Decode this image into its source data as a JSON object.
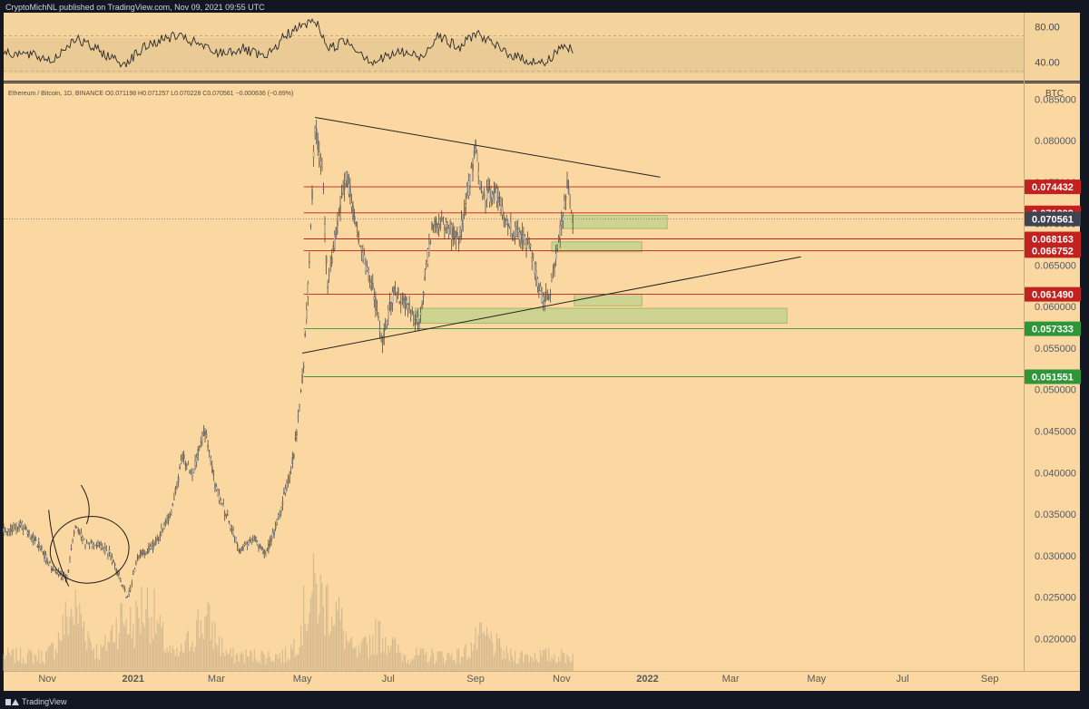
{
  "header": {
    "publisher": "CryptoMichNL published on TradingView.com, Nov 09, 2021 09:55 UTC"
  },
  "footer": {
    "brand": "TradingView"
  },
  "colors": {
    "candle_body": "#8a8a8a",
    "wick": "#3a3a3a",
    "level_red": "#c1221f",
    "level_green": "#2e9638",
    "last_price": "#3f4450",
    "zone_fill": "#c6d48f",
    "trendline": "#222222"
  },
  "chart_data": {
    "type": "candlestick",
    "title": "Ethereum / Bitcoin, 1D, BINANCE",
    "legend": "Ethereum / Bitcoin, 1D, BINANCE  O0.071198 H0.071257 L0.070228 C0.070561 −0.000636 (−0.89%)",
    "price_unit": "BTC",
    "ohlc": {
      "open": 0.071198,
      "high": 0.071257,
      "low": 0.070228,
      "close": 0.070561,
      "change": -0.000636,
      "change_pct": -0.89
    },
    "x_axis": {
      "range": [
        "2020-10-01",
        "2022-09-25"
      ],
      "labels": [
        {
          "label": "Nov",
          "date": "2020-11-01"
        },
        {
          "label": "2021",
          "date": "2021-01-01"
        },
        {
          "label": "Mar",
          "date": "2021-03-01"
        },
        {
          "label": "May",
          "date": "2021-05-01"
        },
        {
          "label": "Jul",
          "date": "2021-07-01"
        },
        {
          "label": "Sep",
          "date": "2021-09-01"
        },
        {
          "label": "Nov",
          "date": "2021-11-01"
        },
        {
          "label": "2022",
          "date": "2022-01-01"
        },
        {
          "label": "Mar",
          "date": "2022-03-01"
        },
        {
          "label": "May",
          "date": "2022-05-01"
        },
        {
          "label": "Jul",
          "date": "2022-07-01"
        },
        {
          "label": "Sep",
          "date": "2022-09-01"
        }
      ]
    },
    "y_axis": {
      "range": [
        0.0161,
        0.0869
      ],
      "ticks": [
        "0.085000",
        "0.080000",
        "0.075000",
        "0.070000",
        "0.065000",
        "0.060000",
        "0.055000",
        "0.050000",
        "0.045000",
        "0.040000",
        "0.035000",
        "0.030000",
        "0.025000",
        "0.020000"
      ]
    },
    "price_path": [
      [
        "2020-10-01",
        0.0332
      ],
      [
        "2020-10-14",
        0.0336
      ],
      [
        "2020-10-25",
        0.0315
      ],
      [
        "2020-11-05",
        0.0283
      ],
      [
        "2020-11-15",
        0.0272
      ],
      [
        "2020-11-21",
        0.0338
      ],
      [
        "2020-11-28",
        0.0315
      ],
      [
        "2020-12-08",
        0.0313
      ],
      [
        "2020-12-15",
        0.0303
      ],
      [
        "2020-12-22",
        0.0275
      ],
      [
        "2020-12-28",
        0.0248
      ],
      [
        "2021-01-05",
        0.0302
      ],
      [
        "2021-01-15",
        0.031
      ],
      [
        "2021-01-28",
        0.035
      ],
      [
        "2021-02-05",
        0.042
      ],
      [
        "2021-02-12",
        0.04
      ],
      [
        "2021-02-21",
        0.045
      ],
      [
        "2021-03-01",
        0.038
      ],
      [
        "2021-03-10",
        0.034
      ],
      [
        "2021-03-18",
        0.0305
      ],
      [
        "2021-03-28",
        0.0322
      ],
      [
        "2021-04-05",
        0.03
      ],
      [
        "2021-04-15",
        0.035
      ],
      [
        "2021-04-25",
        0.042
      ],
      [
        "2021-05-02",
        0.053
      ],
      [
        "2021-05-06",
        0.065
      ],
      [
        "2021-05-10",
        0.082
      ],
      [
        "2021-05-15",
        0.077
      ],
      [
        "2021-05-19",
        0.062
      ],
      [
        "2021-05-25",
        0.069
      ],
      [
        "2021-06-01",
        0.076
      ],
      [
        "2021-06-10",
        0.068
      ],
      [
        "2021-06-20",
        0.062
      ],
      [
        "2021-06-27",
        0.056
      ],
      [
        "2021-07-05",
        0.062
      ],
      [
        "2021-07-15",
        0.06
      ],
      [
        "2021-07-23",
        0.058
      ],
      [
        "2021-08-01",
        0.07
      ],
      [
        "2021-08-10",
        0.07
      ],
      [
        "2021-08-20",
        0.068
      ],
      [
        "2021-09-01",
        0.079
      ],
      [
        "2021-09-06",
        0.073
      ],
      [
        "2021-09-15",
        0.074
      ],
      [
        "2021-09-22",
        0.07
      ],
      [
        "2021-10-01",
        0.069
      ],
      [
        "2021-10-10",
        0.067
      ],
      [
        "2021-10-18",
        0.061
      ],
      [
        "2021-10-24",
        0.062
      ],
      [
        "2021-11-01",
        0.07
      ],
      [
        "2021-11-05",
        0.075
      ],
      [
        "2021-11-09",
        0.0706
      ]
    ],
    "rsi": {
      "scale_labels": [
        "80.00",
        "40.00"
      ],
      "band": [
        30,
        70
      ],
      "range": [
        20,
        90
      ],
      "values": [
        [
          "2020-10-01",
          52
        ],
        [
          "2020-10-20",
          48
        ],
        [
          "2020-11-05",
          42
        ],
        [
          "2020-11-20",
          67
        ],
        [
          "2020-12-05",
          55
        ],
        [
          "2020-12-25",
          38
        ],
        [
          "2021-01-12",
          60
        ],
        [
          "2021-01-30",
          70
        ],
        [
          "2021-02-14",
          62
        ],
        [
          "2021-03-01",
          50
        ],
        [
          "2021-03-20",
          55
        ],
        [
          "2021-04-05",
          44
        ],
        [
          "2021-04-20",
          72
        ],
        [
          "2021-05-10",
          88
        ],
        [
          "2021-05-20",
          55
        ],
        [
          "2021-06-01",
          65
        ],
        [
          "2021-06-20",
          40
        ],
        [
          "2021-07-10",
          52
        ],
        [
          "2021-07-25",
          45
        ],
        [
          "2021-08-05",
          72
        ],
        [
          "2021-08-20",
          55
        ],
        [
          "2021-09-01",
          74
        ],
        [
          "2021-09-15",
          58
        ],
        [
          "2021-10-01",
          45
        ],
        [
          "2021-10-20",
          38
        ],
        [
          "2021-11-02",
          60
        ],
        [
          "2021-11-09",
          52
        ]
      ]
    },
    "volume": {
      "peaks": [
        [
          "2020-11-20",
          0.7
        ],
        [
          "2020-12-25",
          0.6
        ],
        [
          "2021-01-10",
          0.78
        ],
        [
          "2021-02-20",
          0.55
        ],
        [
          "2021-05-10",
          1.0
        ],
        [
          "2021-05-20",
          0.85
        ],
        [
          "2021-06-25",
          0.35
        ],
        [
          "2021-09-07",
          0.3
        ]
      ]
    },
    "levels": [
      {
        "price": 0.074432,
        "label": "0.074432",
        "kind": "resistance"
      },
      {
        "price": 0.071299,
        "label": "0.071299",
        "kind": "resistance"
      },
      {
        "price": 0.070561,
        "label": "0.070561",
        "kind": "last"
      },
      {
        "price": 0.068163,
        "label": "0.068163",
        "kind": "resistance"
      },
      {
        "price": 0.066752,
        "label": "0.066752",
        "kind": "resistance"
      },
      {
        "price": 0.06149,
        "label": "0.061490",
        "kind": "resistance"
      },
      {
        "price": 0.057333,
        "label": "0.057333",
        "kind": "support"
      },
      {
        "price": 0.051551,
        "label": "0.051551",
        "kind": "support"
      }
    ],
    "zones": [
      {
        "start": "2021-11-01",
        "end": "2022-01-15",
        "low": 0.0694,
        "high": 0.071
      },
      {
        "start": "2021-10-25",
        "end": "2021-12-28",
        "low": 0.0666,
        "high": 0.0678
      },
      {
        "start": "2021-11-10",
        "end": "2021-12-28",
        "low": 0.0601,
        "high": 0.0615
      },
      {
        "start": "2021-07-20",
        "end": "2022-04-10",
        "low": 0.058,
        "high": 0.0598
      }
    ],
    "trendlines": [
      {
        "from": [
          "2021-05-10",
          0.0828
        ],
        "to": [
          "2022-01-10",
          0.0756
        ]
      },
      {
        "from": [
          "2021-05-01",
          0.0544
        ],
        "to": [
          "2022-04-20",
          0.066
        ]
      }
    ],
    "annotations": {
      "circle": {
        "center": [
          "2020-12-01",
          0.0307
        ],
        "rx_days": 28,
        "ry_price": 0.004
      }
    }
  }
}
